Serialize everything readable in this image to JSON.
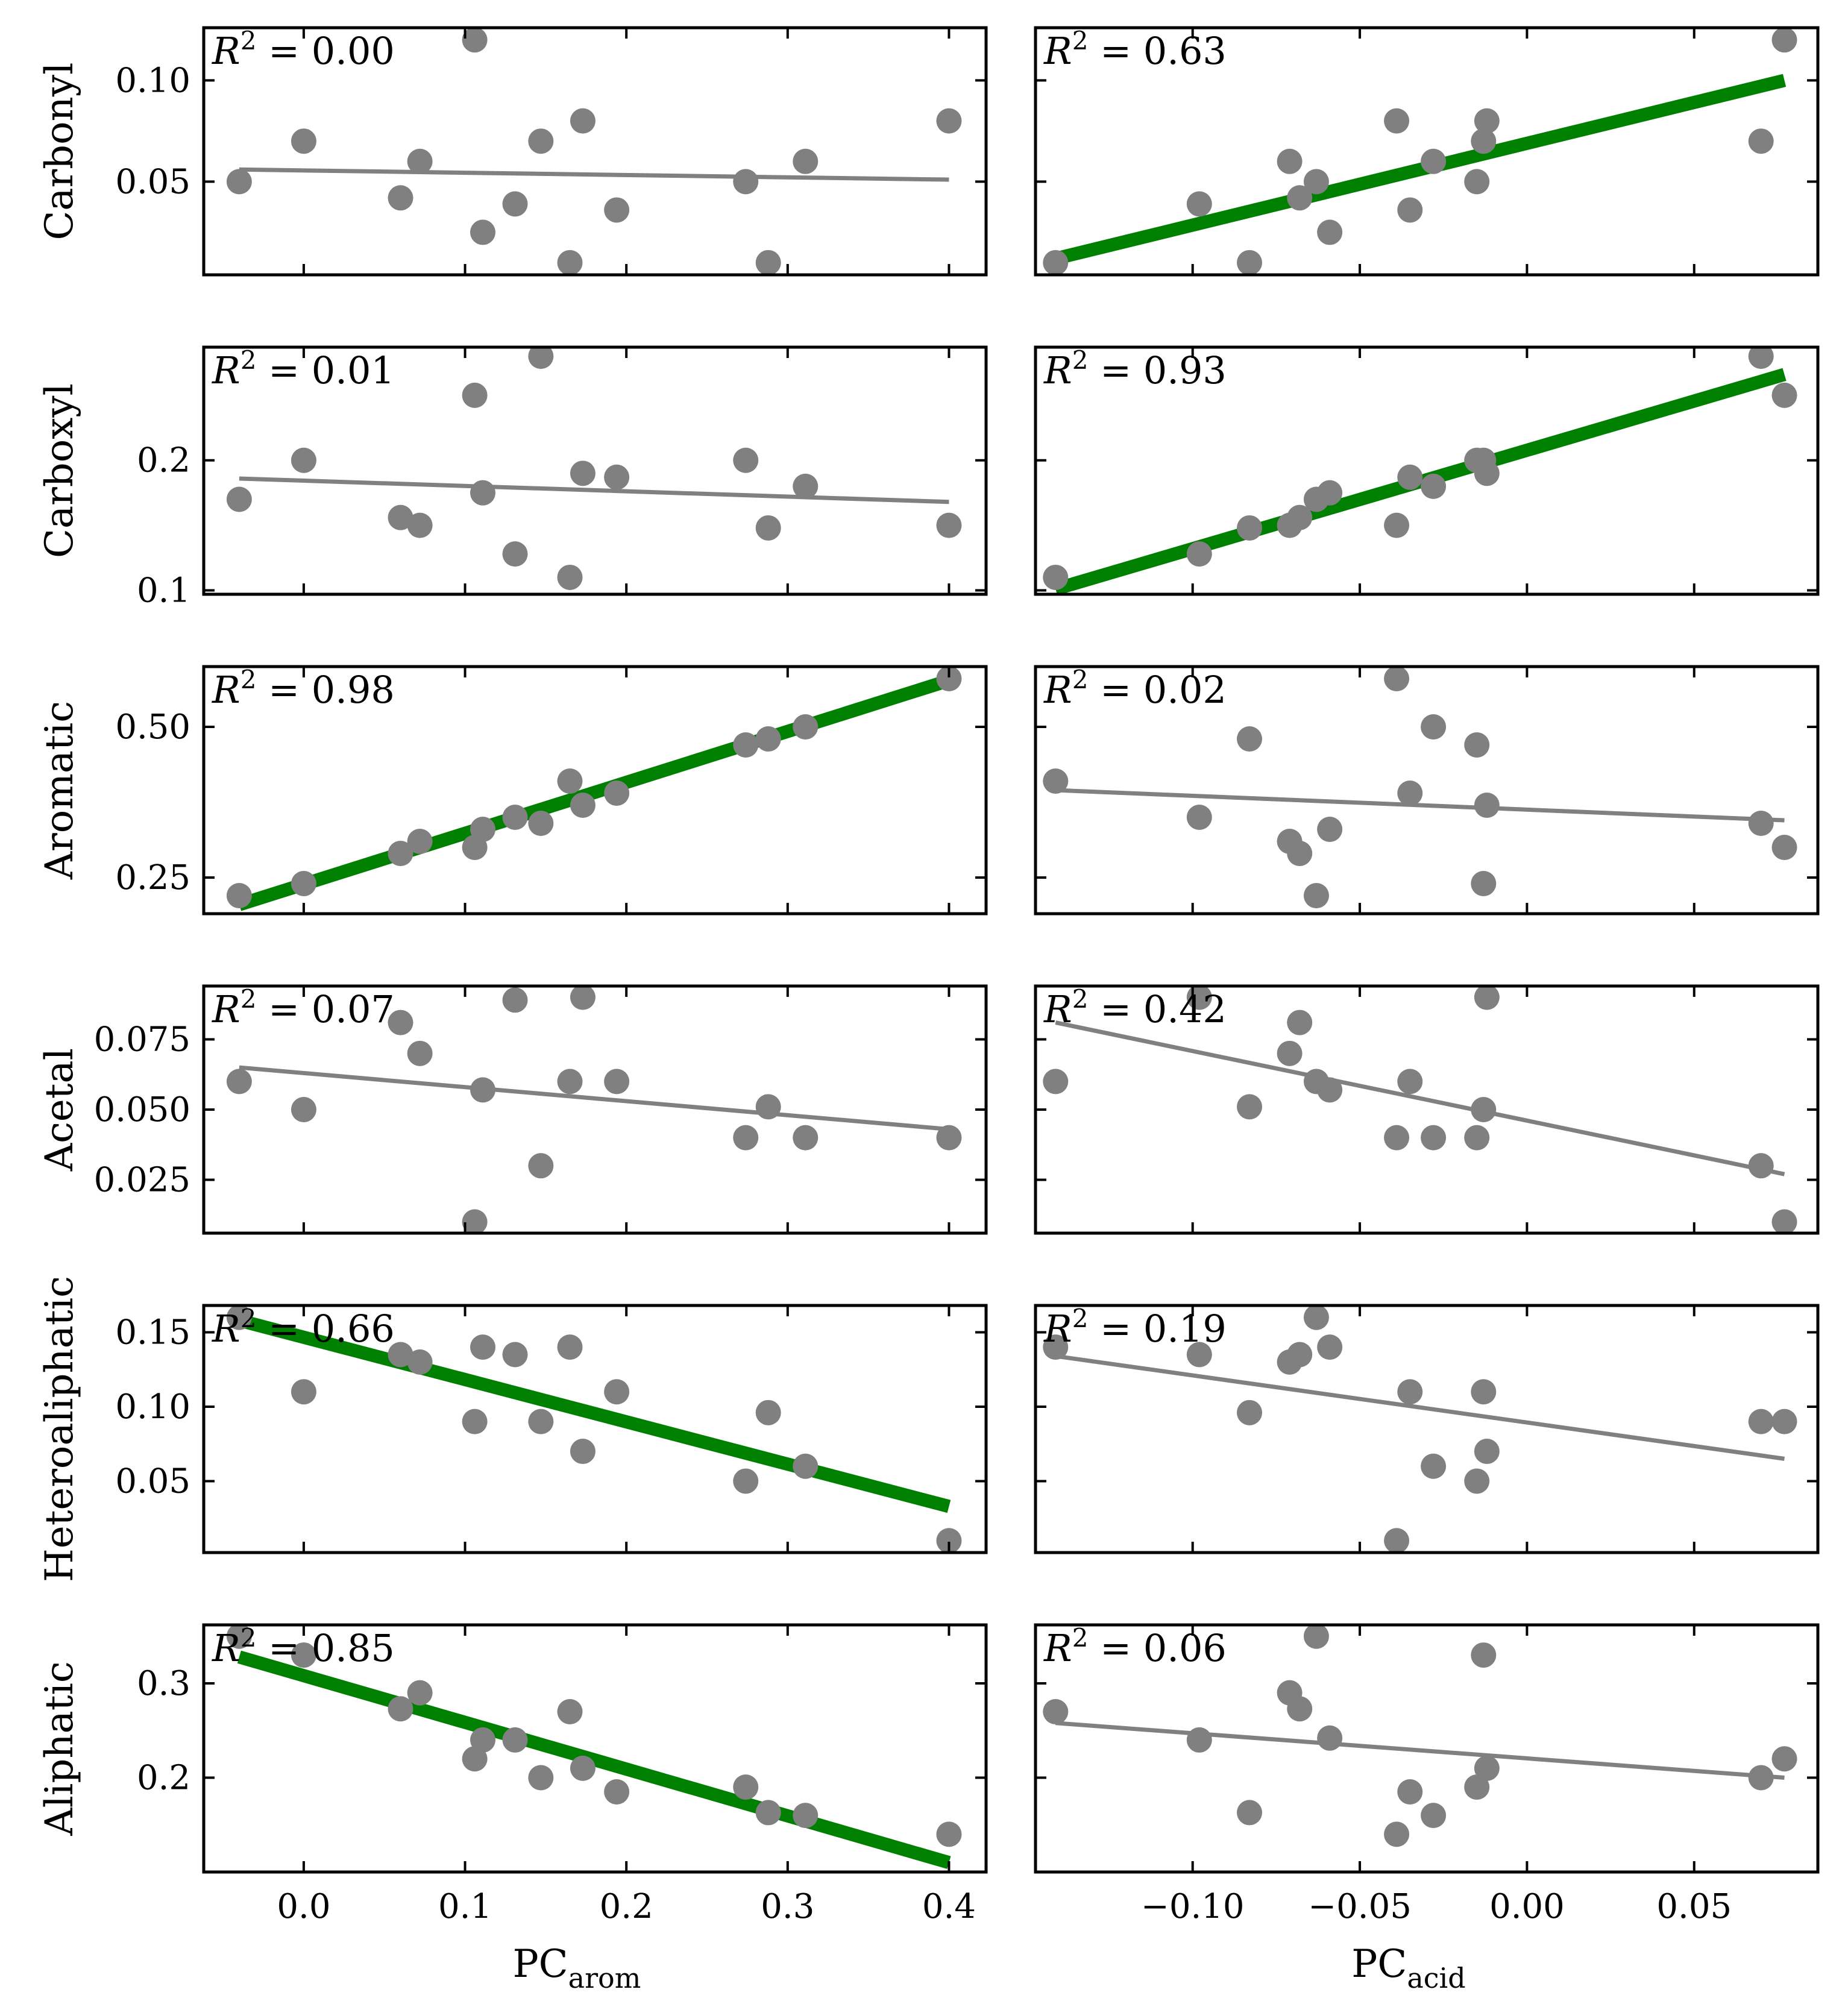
{
  "chart_data": {
    "type": "scatter",
    "layout": "6 rows x 2 columns of scatter panels with fitted regression lines",
    "columns": [
      {
        "xlabel_main": "PC",
        "xlabel_sub": "arom",
        "xlim": [
          -0.062,
          0.423
        ],
        "xticks": [
          0.0,
          0.1,
          0.2,
          0.3,
          0.4
        ],
        "xtick_labels": [
          "0.0",
          "0.1",
          "0.2",
          "0.3",
          "0.4"
        ],
        "x": [
          -0.04,
          0.0,
          0.06,
          0.072,
          0.106,
          0.111,
          0.131,
          0.147,
          0.165,
          0.173,
          0.194,
          0.274,
          0.288,
          0.311,
          0.4
        ]
      },
      {
        "xlabel_main": "PC",
        "xlabel_sub": "acid",
        "xlim": [
          -0.147,
          0.087
        ],
        "xticks": [
          -0.1,
          -0.05,
          0.0,
          0.05
        ],
        "xtick_labels": [
          "−0.10",
          "−0.05",
          "0.00",
          "0.05"
        ],
        "x": [
          -0.141,
          -0.098,
          -0.083,
          -0.071,
          -0.068,
          -0.063,
          -0.059,
          -0.039,
          -0.035,
          -0.028,
          -0.015,
          -0.013,
          -0.012,
          0.07,
          0.077
        ]
      }
    ],
    "rows": [
      {
        "label": "Carbonyl",
        "ylim": [
          0.004,
          0.126
        ],
        "yticks": [
          0.05,
          0.1
        ],
        "ytick_labels": [
          "0.05",
          "0.10"
        ],
        "panels": [
          {
            "r2_prefix": "R",
            "r2_exp": "2",
            "r2_value": " = 0.00",
            "y": [
              0.05,
              0.07,
              0.042,
              0.06,
              0.12,
              0.025,
              0.039,
              0.07,
              0.01,
              0.08,
              0.036,
              0.05,
              0.01,
              0.06,
              0.08
            ],
            "fit": {
              "x": [
                -0.04,
                0.4
              ],
              "y": [
                0.056,
                0.051
              ],
              "significant": false
            }
          },
          {
            "r2_prefix": "R",
            "r2_exp": "2",
            "r2_value": " = 0.63",
            "y": [
              0.01,
              0.039,
              0.01,
              0.06,
              0.042,
              0.05,
              0.025,
              0.08,
              0.036,
              0.06,
              0.05,
              0.07,
              0.08,
              0.07,
              0.12
            ],
            "fit": {
              "x": [
                -0.141,
                0.077
              ],
              "y": [
                0.012,
                0.1
              ],
              "significant": true
            }
          }
        ]
      },
      {
        "label": "Carboxyl",
        "ylim": [
          0.097,
          0.287
        ],
        "yticks": [
          0.1,
          0.2
        ],
        "ytick_labels": [
          "0.1",
          "0.2"
        ],
        "panels": [
          {
            "r2_prefix": "R",
            "r2_exp": "2",
            "r2_value": " = 0.01",
            "y": [
              0.17,
              0.2,
              0.156,
              0.15,
              0.25,
              0.175,
              0.128,
              0.28,
              0.11,
              0.19,
              0.187,
              0.2,
              0.148,
              0.18,
              0.15
            ],
            "fit": {
              "x": [
                -0.04,
                0.4
              ],
              "y": [
                0.186,
                0.168
              ],
              "significant": false
            }
          },
          {
            "r2_prefix": "R",
            "r2_exp": "2",
            "r2_value": " = 0.93",
            "y": [
              0.11,
              0.128,
              0.148,
              0.15,
              0.156,
              0.17,
              0.175,
              0.15,
              0.187,
              0.18,
              0.2,
              0.2,
              0.19,
              0.28,
              0.25
            ],
            "fit": {
              "x": [
                -0.141,
                0.077
              ],
              "y": [
                0.101,
                0.266
              ],
              "significant": true
            }
          }
        ]
      },
      {
        "label": "Aromatic",
        "ylim": [
          0.19,
          0.6
        ],
        "yticks": [
          0.25,
          0.5
        ],
        "ytick_labels": [
          "0.25",
          "0.50"
        ],
        "panels": [
          {
            "r2_prefix": "R",
            "r2_exp": "2",
            "r2_value": " = 0.98",
            "y": [
              0.22,
              0.24,
              0.29,
              0.31,
              0.3,
              0.33,
              0.35,
              0.34,
              0.41,
              0.37,
              0.39,
              0.47,
              0.48,
              0.5,
              0.58
            ],
            "fit": {
              "x": [
                -0.04,
                0.4
              ],
              "y": [
                0.205,
                0.577
              ],
              "significant": true
            }
          },
          {
            "r2_prefix": "R",
            "r2_exp": "2",
            "r2_value": " = 0.02",
            "y": [
              0.41,
              0.35,
              0.48,
              0.31,
              0.29,
              0.22,
              0.33,
              0.58,
              0.39,
              0.5,
              0.47,
              0.24,
              0.37,
              0.34,
              0.3
            ],
            "fit": {
              "x": [
                -0.141,
                0.077
              ],
              "y": [
                0.395,
                0.345
              ],
              "significant": false
            }
          }
        ]
      },
      {
        "label": "Acetal",
        "ylim": [
          0.006,
          0.094
        ],
        "yticks": [
          0.025,
          0.05,
          0.075
        ],
        "ytick_labels": [
          "0.025",
          "0.050",
          "0.075"
        ],
        "panels": [
          {
            "r2_prefix": "R",
            "r2_exp": "2",
            "r2_value": " = 0.07",
            "y": [
              0.06,
              0.05,
              0.081,
              0.07,
              0.01,
              0.057,
              0.089,
              0.03,
              0.06,
              0.09,
              0.06,
              0.04,
              0.051,
              0.04,
              0.04
            ],
            "fit": {
              "x": [
                -0.04,
                0.4
              ],
              "y": [
                0.065,
                0.043
              ],
              "significant": false
            }
          },
          {
            "r2_prefix": "R",
            "r2_exp": "2",
            "r2_value": " = 0.42",
            "y": [
              0.06,
              0.09,
              0.051,
              0.07,
              0.081,
              0.06,
              0.057,
              0.04,
              0.06,
              0.04,
              0.04,
              0.05,
              0.09,
              0.03,
              0.01
            ],
            "fit": {
              "x": [
                -0.141,
                0.077
              ],
              "y": [
                0.081,
                0.027
              ],
              "significant": false
            }
          }
        ]
      },
      {
        "label": "Heteroaliphatic",
        "ylim": [
          0.002,
          0.168
        ],
        "yticks": [
          0.05,
          0.1,
          0.15
        ],
        "ytick_labels": [
          "0.05",
          "0.10",
          "0.15"
        ],
        "panels": [
          {
            "r2_prefix": "R",
            "r2_exp": "2",
            "r2_value": " = 0.66",
            "y": [
              0.16,
              0.11,
              0.135,
              0.13,
              0.09,
              0.14,
              0.135,
              0.09,
              0.14,
              0.07,
              0.11,
              0.05,
              0.096,
              0.06,
              0.01
            ],
            "fit": {
              "x": [
                -0.04,
                0.4
              ],
              "y": [
                0.158,
                0.033
              ],
              "significant": true
            }
          },
          {
            "r2_prefix": "R",
            "r2_exp": "2",
            "r2_value": " = 0.19",
            "y": [
              0.14,
              0.135,
              0.096,
              0.13,
              0.135,
              0.16,
              0.14,
              0.01,
              0.11,
              0.06,
              0.05,
              0.11,
              0.07,
              0.09,
              0.09
            ],
            "fit": {
              "x": [
                -0.141,
                0.077
              ],
              "y": [
                0.134,
                0.065
              ],
              "significant": false
            }
          }
        ]
      },
      {
        "label": "Aliphatic",
        "ylim": [
          0.1,
          0.362
        ],
        "yticks": [
          0.2,
          0.3
        ],
        "ytick_labels": [
          "0.2",
          "0.3"
        ],
        "panels": [
          {
            "r2_prefix": "R",
            "r2_exp": "2",
            "r2_value": " = 0.85",
            "y": [
              0.35,
              0.33,
              0.273,
              0.29,
              0.22,
              0.24,
              0.24,
              0.2,
              0.27,
              0.21,
              0.185,
              0.19,
              0.163,
              0.16,
              0.14
            ],
            "fit": {
              "x": [
                -0.04,
                0.4
              ],
              "y": [
                0.328,
                0.11
              ],
              "significant": true
            }
          },
          {
            "r2_prefix": "R",
            "r2_exp": "2",
            "r2_value": " = 0.06",
            "y": [
              0.27,
              0.24,
              0.163,
              0.29,
              0.273,
              0.35,
              0.242,
              0.14,
              0.185,
              0.16,
              0.19,
              0.33,
              0.21,
              0.2,
              0.22
            ],
            "fit": {
              "x": [
                -0.141,
                0.077
              ],
              "y": [
                0.258,
                0.2
              ],
              "significant": false
            }
          }
        ]
      }
    ],
    "colors": {
      "points": "#808080",
      "fit_line": "#808080",
      "significant_fit_line": "#008000",
      "axes": "#000000"
    }
  }
}
